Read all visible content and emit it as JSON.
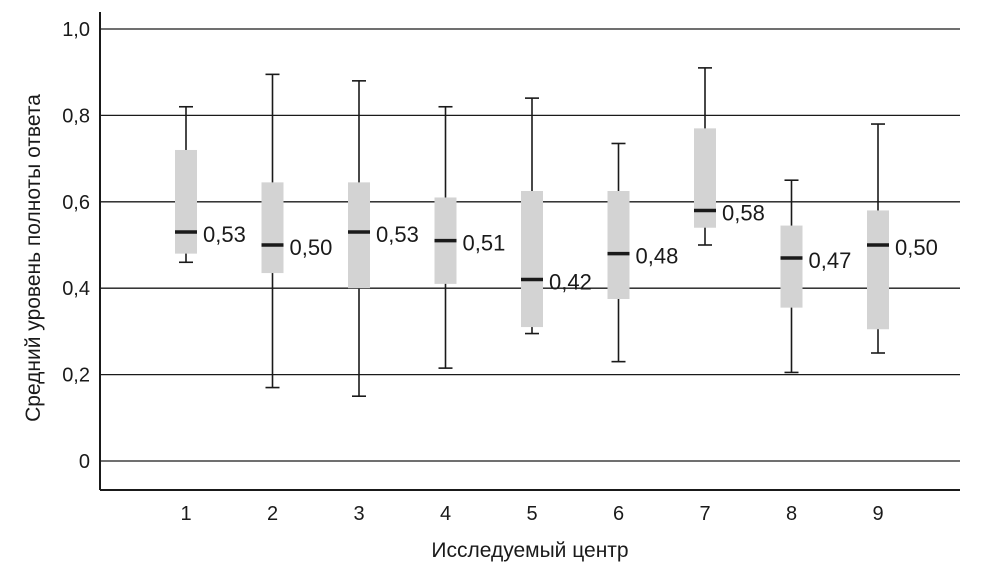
{
  "chart_data": {
    "type": "boxplot",
    "xlabel": "Исследуемый центр",
    "ylabel": "Средний уровень полноты ответа",
    "ylim": [
      0,
      1.0
    ],
    "yticks": [
      0,
      0.2,
      0.4,
      0.6,
      0.8,
      1.0
    ],
    "ytick_labels": [
      "0",
      "0,2",
      "0,4",
      "0,6",
      "0,8",
      "1,0"
    ],
    "grid": true,
    "categories": [
      "1",
      "2",
      "3",
      "4",
      "5",
      "6",
      "7",
      "8",
      "9"
    ],
    "boxes": [
      {
        "category": "1",
        "min": 0.46,
        "q1": 0.48,
        "median": 0.53,
        "q3": 0.72,
        "max": 0.82,
        "label": "0,53"
      },
      {
        "category": "2",
        "min": 0.17,
        "q1": 0.435,
        "median": 0.5,
        "q3": 0.645,
        "max": 0.895,
        "label": "0,50"
      },
      {
        "category": "3",
        "min": 0.15,
        "q1": 0.4,
        "median": 0.53,
        "q3": 0.645,
        "max": 0.88,
        "label": "0,53"
      },
      {
        "category": "4",
        "min": 0.215,
        "q1": 0.41,
        "median": 0.51,
        "q3": 0.61,
        "max": 0.82,
        "label": "0,51"
      },
      {
        "category": "5",
        "min": 0.295,
        "q1": 0.31,
        "median": 0.42,
        "q3": 0.625,
        "max": 0.84,
        "label": "0,42"
      },
      {
        "category": "6",
        "min": 0.23,
        "q1": 0.375,
        "median": 0.48,
        "q3": 0.625,
        "max": 0.735,
        "label": "0,48"
      },
      {
        "category": "7",
        "min": 0.5,
        "q1": 0.54,
        "median": 0.58,
        "q3": 0.77,
        "max": 0.91,
        "label": "0,58"
      },
      {
        "category": "8",
        "min": 0.205,
        "q1": 0.355,
        "median": 0.47,
        "q3": 0.545,
        "max": 0.65,
        "label": "0,47"
      },
      {
        "category": "9",
        "min": 0.25,
        "q1": 0.305,
        "median": 0.5,
        "q3": 0.58,
        "max": 0.78,
        "label": "0,50"
      }
    ],
    "colors": {
      "box_fill": "#d3d3d3",
      "median_line": "#1a1a1a",
      "whisker": "#1a1a1a",
      "grid": "#1a1a1a",
      "axis": "#1a1a1a"
    }
  }
}
